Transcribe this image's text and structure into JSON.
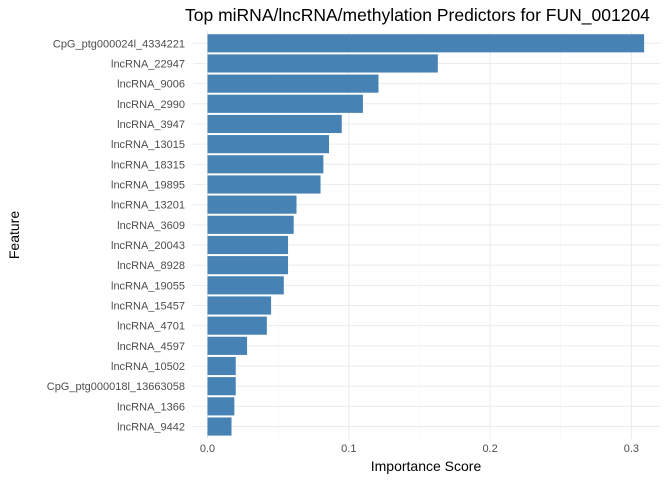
{
  "chart_data": {
    "type": "bar",
    "orientation": "horizontal",
    "title": "Top miRNA/lncRNA/methylation Predictors for FUN_001204",
    "xlabel": "Importance Score",
    "ylabel": "Feature",
    "xlim": [
      0,
      0.31
    ],
    "x_ticks": [
      "0.0",
      "0.1",
      "0.2",
      "0.3"
    ],
    "grid": true,
    "bar_color": "#4682B4",
    "categories": [
      "CpG_ptg000024l_4334221",
      "lncRNA_22947",
      "lncRNA_9006",
      "lncRNA_2990",
      "lncRNA_3947",
      "lncRNA_13015",
      "lncRNA_18315",
      "lncRNA_19895",
      "lncRNA_13201",
      "lncRNA_3609",
      "lncRNA_20043",
      "lncRNA_8928",
      "lncRNA_19055",
      "lncRNA_15457",
      "lncRNA_4701",
      "lncRNA_4597",
      "lncRNA_10502",
      "CpG_ptg000018l_13663058",
      "lncRNA_1366",
      "lncRNA_9442"
    ],
    "values": [
      0.309,
      0.163,
      0.121,
      0.11,
      0.095,
      0.086,
      0.082,
      0.08,
      0.063,
      0.061,
      0.057,
      0.057,
      0.054,
      0.045,
      0.042,
      0.028,
      0.02,
      0.02,
      0.019,
      0.017
    ]
  }
}
